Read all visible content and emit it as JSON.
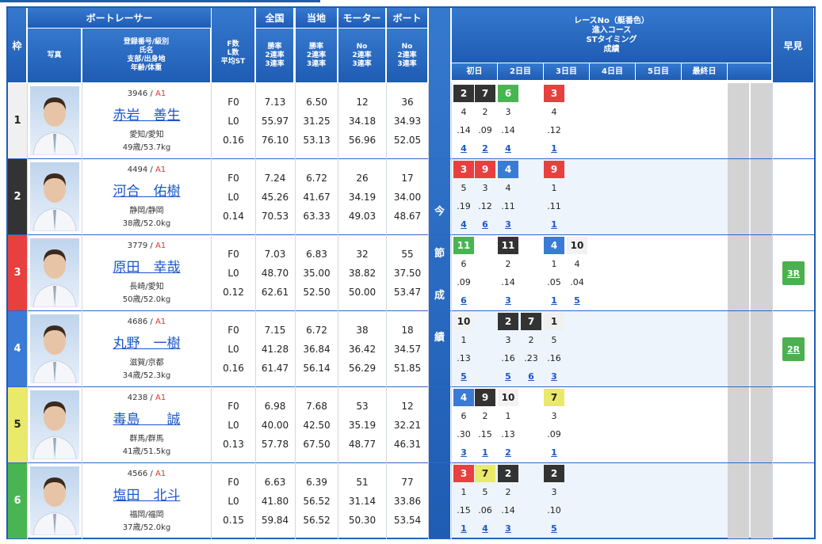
{
  "headers": {
    "waku": "枠",
    "photo": "写真",
    "racer": "ボートレーサー",
    "racer_sub": [
      "登録番号/級別",
      "氏名",
      "支部/出身地",
      "年齢/体重"
    ],
    "fl": [
      "F数",
      "L数",
      "平均ST"
    ],
    "zenkoku": "全国",
    "touchi": "当地",
    "motor": "モーター",
    "boat": "ボート",
    "rate": [
      "勝率",
      "2連率",
      "3連率"
    ],
    "motor_sub": [
      "No",
      "2連率",
      "3連率"
    ],
    "boat_sub": [
      "No",
      "2連率",
      "3連率"
    ],
    "race_title": [
      "レースNo（艇番色）",
      "進入コース",
      "STタイミング",
      "成績"
    ],
    "days": [
      "初日",
      "2日目",
      "3日目",
      "4日目",
      "5日目",
      "最終日"
    ],
    "hayami": "早見",
    "konsetsu": [
      "今",
      "節",
      "成",
      "績"
    ]
  },
  "racers": [
    {
      "waku": "1",
      "reg": "3946",
      "cls": "A1",
      "name": "赤岩　善生",
      "pref": "愛知/愛知",
      "age": "49歳/53.7kg",
      "f": "F0",
      "l": "L0",
      "st": "0.16",
      "zen": [
        "7.13",
        "55.97",
        "76.10"
      ],
      "tou": [
        "6.50",
        "31.25",
        "53.13"
      ],
      "mot": [
        "12",
        "34.18",
        "56.96"
      ],
      "boa": [
        "36",
        "34.93",
        "52.05"
      ],
      "hayami": ""
    },
    {
      "waku": "2",
      "reg": "4494",
      "cls": "A1",
      "name": "河合　佑樹",
      "pref": "静岡/静岡",
      "age": "38歳/52.0kg",
      "f": "F0",
      "l": "L0",
      "st": "0.14",
      "zen": [
        "7.24",
        "45.26",
        "70.53"
      ],
      "tou": [
        "6.72",
        "41.67",
        "63.33"
      ],
      "mot": [
        "26",
        "34.19",
        "49.03"
      ],
      "boa": [
        "17",
        "34.00",
        "48.67"
      ],
      "hayami": ""
    },
    {
      "waku": "3",
      "reg": "3779",
      "cls": "A1",
      "name": "原田　幸哉",
      "pref": "長崎/愛知",
      "age": "50歳/52.0kg",
      "f": "F0",
      "l": "L0",
      "st": "0.12",
      "zen": [
        "7.03",
        "48.70",
        "62.61"
      ],
      "tou": [
        "6.83",
        "35.00",
        "52.50"
      ],
      "mot": [
        "32",
        "38.82",
        "50.00"
      ],
      "boa": [
        "55",
        "37.50",
        "53.47"
      ],
      "hayami": "3R"
    },
    {
      "waku": "4",
      "reg": "4686",
      "cls": "A1",
      "name": "丸野　一樹",
      "pref": "滋賀/京都",
      "age": "34歳/52.3kg",
      "f": "F0",
      "l": "L0",
      "st": "0.16",
      "zen": [
        "7.15",
        "41.28",
        "61.47"
      ],
      "tou": [
        "6.72",
        "36.84",
        "56.14"
      ],
      "mot": [
        "38",
        "36.42",
        "56.29"
      ],
      "boa": [
        "18",
        "34.57",
        "51.85"
      ],
      "hayami": "2R"
    },
    {
      "waku": "5",
      "reg": "4238",
      "cls": "A1",
      "name": "毒島　　誠",
      "pref": "群馬/群馬",
      "age": "41歳/51.5kg",
      "f": "F0",
      "l": "L0",
      "st": "0.13",
      "zen": [
        "6.98",
        "40.00",
        "57.78"
      ],
      "tou": [
        "7.68",
        "42.50",
        "67.50"
      ],
      "mot": [
        "53",
        "35.19",
        "48.77"
      ],
      "boa": [
        "12",
        "32.21",
        "46.31"
      ],
      "hayami": ""
    },
    {
      "waku": "6",
      "reg": "4566",
      "cls": "A1",
      "name": "塩田　北斗",
      "pref": "福岡/福岡",
      "age": "37歳/52.0kg",
      "f": "F0",
      "l": "L0",
      "st": "0.15",
      "zen": [
        "6.63",
        "41.80",
        "59.84"
      ],
      "tou": [
        "6.39",
        "56.52",
        "56.52"
      ],
      "mot": [
        "51",
        "31.14",
        "50.30"
      ],
      "boa": [
        "77",
        "33.86",
        "53.54"
      ],
      "hayami": ""
    }
  ],
  "results": [
    [
      {
        "c": 0,
        "r": "2",
        "k": "4",
        "s": ".14",
        "p": "4"
      },
      {
        "c": 1,
        "r": "7",
        "k": "2",
        "s": ".09",
        "p": "2"
      },
      {
        "c": 2,
        "r": "6",
        "k": "3",
        "s": ".14",
        "p": "4"
      },
      {
        "c": 4,
        "r": "3",
        "k": "4",
        "s": ".12",
        "p": "1"
      }
    ],
    [
      {
        "c": 0,
        "r": "3",
        "k": "5",
        "s": ".19",
        "p": "4"
      },
      {
        "c": 1,
        "r": "9",
        "k": "3",
        "s": ".12",
        "p": "6"
      },
      {
        "c": 2,
        "r": "4",
        "k": "4",
        "s": ".11",
        "p": "3"
      },
      {
        "c": 4,
        "r": "9",
        "k": "1",
        "s": ".11",
        "p": "1"
      }
    ],
    [
      {
        "c": 0,
        "r": "11",
        "k": "6",
        "s": ".09",
        "p": "6"
      },
      {
        "c": 2,
        "r": "11",
        "k": "2",
        "s": ".14",
        "p": "3"
      },
      {
        "c": 4,
        "r": "4",
        "k": "1",
        "s": ".05",
        "p": "1"
      },
      {
        "c": 5,
        "r": "10",
        "k": "4",
        "s": ".04",
        "p": "5"
      }
    ],
    [
      {
        "c": 0,
        "r": "10",
        "k": "1",
        "s": ".13",
        "p": "5"
      },
      {
        "c": 2,
        "r": "2",
        "k": "3",
        "s": ".16",
        "p": "5"
      },
      {
        "c": 3,
        "r": "7",
        "k": "2",
        "s": ".23",
        "p": "6"
      },
      {
        "c": 4,
        "r": "1",
        "k": "5",
        "s": ".16",
        "p": "3"
      }
    ],
    [
      {
        "c": 0,
        "r": "4",
        "k": "6",
        "s": ".30",
        "p": "3"
      },
      {
        "c": 1,
        "r": "9",
        "k": "2",
        "s": ".15",
        "p": "1"
      },
      {
        "c": 2,
        "r": "10",
        "k": "1",
        "s": ".13",
        "p": "2"
      },
      {
        "c": 4,
        "r": "7",
        "k": "3",
        "s": ".09",
        "p": "1"
      }
    ],
    [
      {
        "c": 0,
        "r": "3",
        "k": "1",
        "s": ".15",
        "p": "1"
      },
      {
        "c": 1,
        "r": "7",
        "k": "5",
        "s": ".06",
        "p": "4"
      },
      {
        "c": 2,
        "r": "2",
        "k": "2",
        "s": ".14",
        "p": "3"
      },
      {
        "c": 4,
        "r": "2",
        "k": "3",
        "s": ".10",
        "p": "5"
      }
    ]
  ],
  "colors": {
    "w1": "#f0f0f0",
    "w2": "#333333",
    "w3": "#e8403f",
    "w4": "#3a7bd5",
    "w5": "#e9e96a",
    "w6": "#48b552",
    "header": "#2a69c2",
    "accent_red": "#e53030",
    "link": "#1a56c8",
    "hayami_btn": "#4cb050"
  }
}
